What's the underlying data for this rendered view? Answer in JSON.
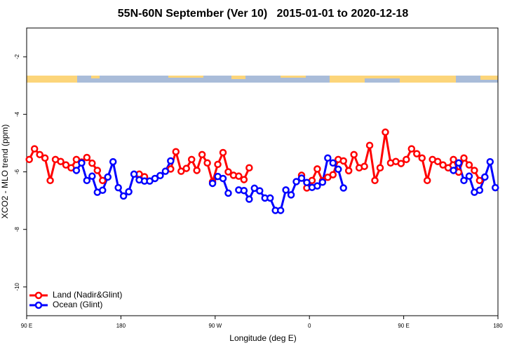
{
  "chart_data": {
    "type": "line",
    "title": "55N-60N September (Ver 10)   2015-01-01 to 2020-12-18",
    "x_label": "Longitude (deg E)",
    "y_label": "XCO2 - MLO trend (ppm)",
    "x": [
      92.5,
      97.5,
      102.5,
      107.5,
      112.5,
      117.5,
      122.5,
      127.5,
      132.5,
      137.5,
      142.5,
      147.5,
      152.5,
      157.5,
      162.5,
      167.5,
      172.5,
      177.5,
      182.5,
      187.5,
      192.5,
      197.5,
      202.5,
      207.5,
      212.5,
      217.5,
      222.5,
      227.5,
      232.5,
      237.5,
      242.5,
      247.5,
      252.5,
      257.5,
      262.5,
      267.5,
      272.5,
      277.5,
      282.5,
      287.5,
      292.5,
      297.5,
      302.5,
      307.5,
      312.5,
      317.5,
      322.5,
      327.5,
      332.5,
      337.5,
      342.5,
      347.5,
      352.5,
      357.5,
      362.5,
      367.5,
      372.5,
      377.5,
      382.5,
      387.5,
      392.5,
      397.5,
      402.5,
      407.5,
      412.5,
      417.5,
      422.5,
      427.5,
      432.5,
      437.5,
      442.5,
      447.5,
      452.5,
      457.5,
      462.5,
      467.5,
      472.5,
      477.5,
      482.5,
      487.5,
      492.5,
      497.5,
      502.5,
      507.5,
      512.5,
      517.5,
      522.5,
      527.5,
      532.5,
      537.5
    ],
    "series": [
      {
        "name": "Land (Nadir&Glint)",
        "color": "#ff0000",
        "values": [
          -5.57,
          -5.2,
          -5.4,
          -5.52,
          -6.3,
          -5.57,
          -5.64,
          -5.76,
          -5.86,
          -5.57,
          -5.66,
          -5.5,
          -5.7,
          -5.95,
          -6.3,
          null,
          null,
          null,
          null,
          null,
          null,
          -6.08,
          -6.17,
          null,
          null,
          null,
          null,
          -5.9,
          -5.3,
          -5.98,
          -5.88,
          -5.57,
          -5.95,
          -5.4,
          -5.69,
          -6.35,
          -5.74,
          -5.33,
          -6.0,
          -6.12,
          -6.15,
          -6.27,
          -5.86,
          null,
          null,
          null,
          null,
          null,
          null,
          null,
          null,
          null,
          -6.12,
          -6.56,
          -6.3,
          -5.9,
          -6.31,
          -6.19,
          -6.1,
          -5.57,
          -5.62,
          -5.96,
          -5.4,
          -5.86,
          -5.81,
          -5.08,
          -6.3,
          -5.86,
          -4.62,
          -5.69,
          -5.64,
          -5.71,
          -5.57,
          -5.2,
          -5.37,
          -5.52,
          -6.3,
          -5.57,
          -5.64,
          -5.76,
          -5.86,
          -5.57,
          -6.01,
          -5.52,
          -5.76,
          -5.95,
          -6.3,
          null,
          null,
          null
        ]
      },
      {
        "name": "Ocean (Glint)",
        "color": "#0000ff",
        "values": [
          null,
          null,
          null,
          null,
          null,
          null,
          null,
          null,
          null,
          -5.95,
          -5.69,
          -6.3,
          -6.15,
          -6.71,
          -6.64,
          -6.18,
          -5.65,
          -6.55,
          -6.84,
          -6.69,
          -6.08,
          -6.28,
          -6.32,
          -6.32,
          -6.23,
          -6.13,
          -5.98,
          -5.62,
          null,
          null,
          null,
          null,
          null,
          null,
          null,
          -6.4,
          -6.16,
          -6.23,
          -6.74,
          null,
          -6.63,
          -6.65,
          -6.95,
          -6.57,
          -6.66,
          -6.91,
          -6.91,
          -7.34,
          -7.34,
          -6.63,
          -6.8,
          -6.34,
          -6.22,
          -6.37,
          -6.54,
          -6.49,
          -6.36,
          -5.52,
          -5.69,
          -5.91,
          -6.56,
          null,
          null,
          null,
          null,
          null,
          null,
          null,
          null,
          null,
          null,
          null,
          null,
          null,
          null,
          null,
          null,
          null,
          null,
          null,
          null,
          -5.95,
          -5.69,
          -6.3,
          -6.15,
          -6.71,
          -6.64,
          -6.18,
          -5.65,
          -6.55
        ]
      }
    ],
    "xlim": [
      90,
      540
    ],
    "ylim": [
      -11,
      -1
    ],
    "xticks": [
      {
        "value": 90,
        "label": "90 E"
      },
      {
        "value": 180,
        "label": "180"
      },
      {
        "value": 270,
        "label": "90 W"
      },
      {
        "value": 360,
        "label": "0"
      },
      {
        "value": 450,
        "label": "90 E"
      },
      {
        "value": 540,
        "label": "180"
      }
    ],
    "yticks": [
      -10,
      -8,
      -6,
      -4,
      -2
    ],
    "legend": "bottom-left"
  }
}
